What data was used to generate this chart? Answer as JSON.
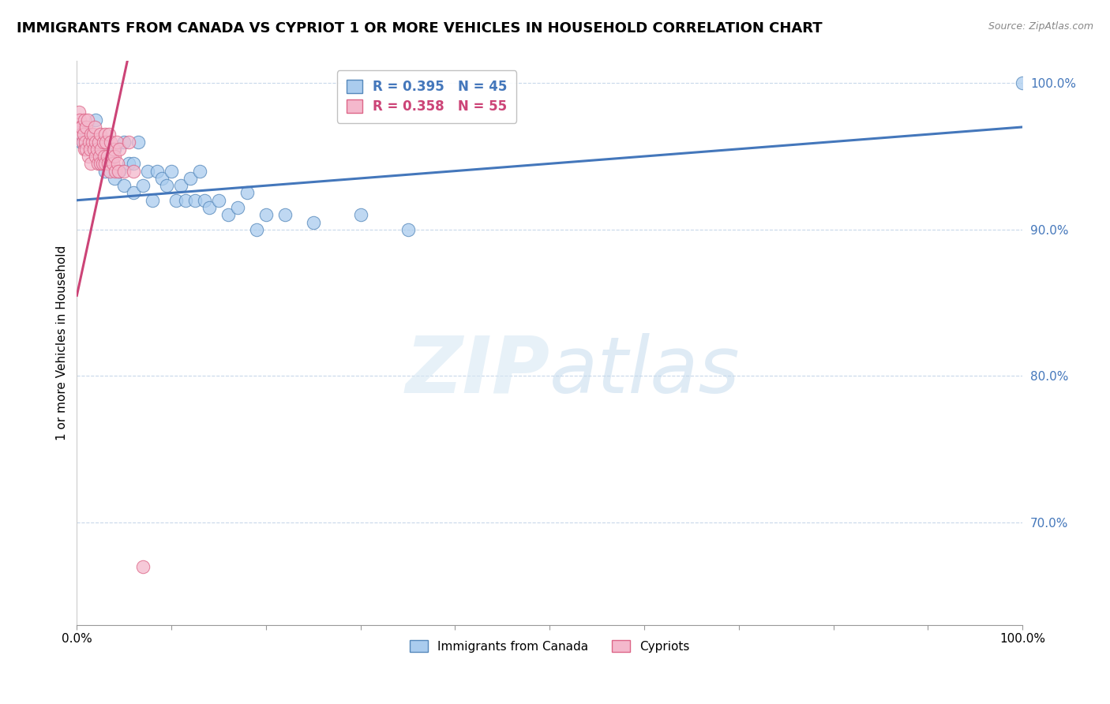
{
  "title": "IMMIGRANTS FROM CANADA VS CYPRIOT 1 OR MORE VEHICLES IN HOUSEHOLD CORRELATION CHART",
  "source": "Source: ZipAtlas.com",
  "ylabel": "1 or more Vehicles in Household",
  "xlabel": "",
  "xlim": [
    0.0,
    1.0
  ],
  "ylim": [
    0.63,
    1.015
  ],
  "yticks": [
    0.7,
    0.8,
    0.9,
    1.0
  ],
  "ytick_labels": [
    "70.0%",
    "80.0%",
    "90.0%",
    "100.0%"
  ],
  "xticks": [
    0.0,
    0.1,
    0.2,
    0.3,
    0.4,
    0.5,
    0.6,
    0.7,
    0.8,
    0.9,
    1.0
  ],
  "xtick_labels": [
    "0.0%",
    "",
    "",
    "",
    "",
    "",
    "",
    "",
    "",
    "",
    "100.0%"
  ],
  "legend_r_blue": "R = 0.395",
  "legend_n_blue": "N = 45",
  "legend_r_pink": "R = 0.358",
  "legend_n_pink": "N = 55",
  "legend_label_blue": "Immigrants from Canada",
  "legend_label_pink": "Cypriots",
  "watermark_zip": "ZIP",
  "watermark_atlas": "atlas",
  "blue_color": "#aaccee",
  "pink_color": "#f4b8cc",
  "blue_edge_color": "#5588bb",
  "pink_edge_color": "#dd6688",
  "blue_line_color": "#4477bb",
  "pink_line_color": "#cc4477",
  "background_color": "#ffffff",
  "grid_color": "#c8d8ea",
  "title_fontsize": 13,
  "axis_fontsize": 11,
  "tick_fontsize": 11,
  "blue_scatter_x": [
    0.005,
    0.005,
    0.01,
    0.015,
    0.02,
    0.025,
    0.025,
    0.03,
    0.03,
    0.035,
    0.04,
    0.04,
    0.045,
    0.05,
    0.05,
    0.055,
    0.06,
    0.06,
    0.065,
    0.07,
    0.075,
    0.08,
    0.085,
    0.09,
    0.095,
    0.1,
    0.105,
    0.11,
    0.115,
    0.12,
    0.125,
    0.13,
    0.135,
    0.14,
    0.15,
    0.16,
    0.17,
    0.18,
    0.19,
    0.2,
    0.22,
    0.25,
    0.3,
    0.35,
    1.0
  ],
  "blue_scatter_y": [
    0.97,
    0.96,
    0.965,
    0.955,
    0.975,
    0.955,
    0.945,
    0.96,
    0.94,
    0.95,
    0.955,
    0.935,
    0.94,
    0.96,
    0.93,
    0.945,
    0.945,
    0.925,
    0.96,
    0.93,
    0.94,
    0.92,
    0.94,
    0.935,
    0.93,
    0.94,
    0.92,
    0.93,
    0.92,
    0.935,
    0.92,
    0.94,
    0.92,
    0.915,
    0.92,
    0.91,
    0.915,
    0.925,
    0.9,
    0.91,
    0.91,
    0.905,
    0.91,
    0.9,
    1.0
  ],
  "pink_scatter_x": [
    0.002,
    0.003,
    0.004,
    0.005,
    0.005,
    0.006,
    0.007,
    0.008,
    0.008,
    0.009,
    0.01,
    0.01,
    0.011,
    0.012,
    0.013,
    0.014,
    0.015,
    0.015,
    0.016,
    0.017,
    0.018,
    0.019,
    0.02,
    0.02,
    0.021,
    0.022,
    0.023,
    0.024,
    0.025,
    0.025,
    0.026,
    0.027,
    0.028,
    0.029,
    0.03,
    0.03,
    0.031,
    0.032,
    0.033,
    0.034,
    0.035,
    0.036,
    0.037,
    0.038,
    0.039,
    0.04,
    0.041,
    0.042,
    0.043,
    0.044,
    0.045,
    0.05,
    0.055,
    0.06,
    0.07
  ],
  "pink_scatter_y": [
    0.98,
    0.975,
    0.97,
    0.965,
    0.97,
    0.96,
    0.965,
    0.975,
    0.955,
    0.96,
    0.97,
    0.955,
    0.975,
    0.95,
    0.96,
    0.955,
    0.965,
    0.945,
    0.96,
    0.965,
    0.955,
    0.97,
    0.96,
    0.95,
    0.955,
    0.945,
    0.96,
    0.95,
    0.965,
    0.945,
    0.955,
    0.945,
    0.96,
    0.95,
    0.965,
    0.945,
    0.96,
    0.95,
    0.945,
    0.965,
    0.94,
    0.96,
    0.95,
    0.945,
    0.955,
    0.95,
    0.94,
    0.96,
    0.945,
    0.94,
    0.955,
    0.94,
    0.96,
    0.94,
    0.67
  ]
}
